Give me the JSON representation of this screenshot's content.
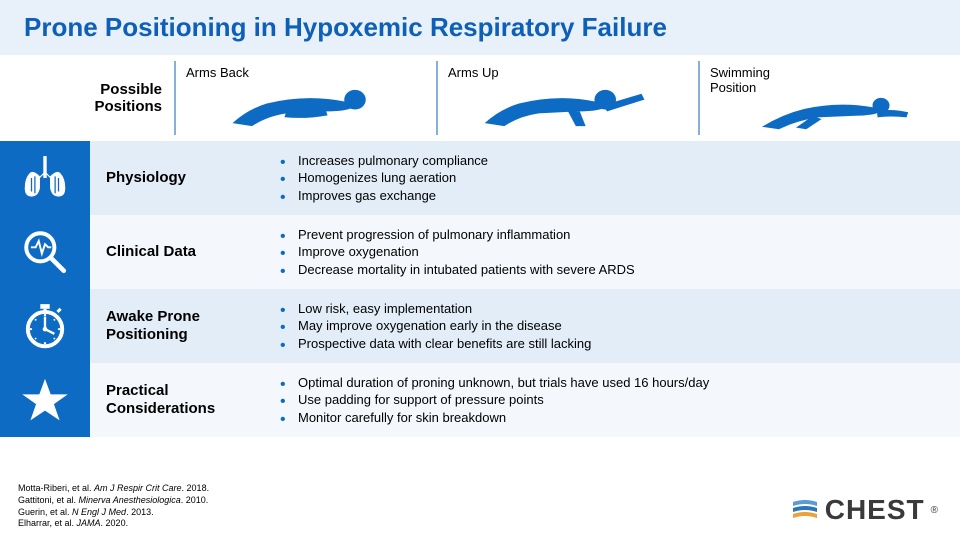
{
  "title": "Prone Positioning in Hypoxemic Respiratory Failure",
  "colors": {
    "accent": "#0d6bc4",
    "title": "#0d5fb8",
    "header_bg": "#e8f0fa",
    "row_light": "#e2edf7",
    "row_dark": "#f4f8fc",
    "divider": "#85b0d8"
  },
  "positions": {
    "label1": "Possible",
    "label2": "Positions",
    "items": [
      {
        "name": "Arms Back"
      },
      {
        "name": "Arms Up"
      },
      {
        "name": "Swimming",
        "name2": "Position"
      }
    ]
  },
  "sections": [
    {
      "icon": "lungs",
      "heading": "Physiology",
      "bullets": [
        "Increases pulmonary compliance",
        "Homogenizes lung aeration",
        "Improves gas exchange"
      ],
      "shade": "light"
    },
    {
      "icon": "magnify",
      "heading": "Clinical Data",
      "bullets": [
        "Prevent progression of pulmonary inflammation",
        "Improve oxygenation",
        "Decrease mortality in intubated patients with severe ARDS"
      ],
      "shade": "dark"
    },
    {
      "icon": "stopwatch",
      "heading": "Awake Prone",
      "heading2": "Positioning",
      "bullets": [
        "Low risk, easy implementation",
        "May improve oxygenation early in the disease",
        "Prospective data with clear benefits are still lacking"
      ],
      "shade": "light"
    },
    {
      "icon": "star",
      "heading": "Practical",
      "heading2": "Considerations",
      "bullets": [
        "Optimal duration of proning unknown, but trials have used 16 hours/day",
        "Use padding for support of pressure points",
        "Monitor carefully for skin breakdown"
      ],
      "shade": "dark"
    }
  ],
  "references": [
    {
      "authors": "Motta-Riberi, et al.",
      "journal": "Am J Respir Crit Care",
      "year": "2018."
    },
    {
      "authors": "Gattitoni, et al.",
      "journal": "Minerva Anesthesiologica",
      "year": "2010."
    },
    {
      "authors": "Guerin, et al.",
      "journal": "N Engl J Med",
      "year": "2013."
    },
    {
      "authors": "Elharrar, et al.",
      "journal": "JAMA",
      "year": "2020."
    }
  ],
  "logo": "CHEST"
}
